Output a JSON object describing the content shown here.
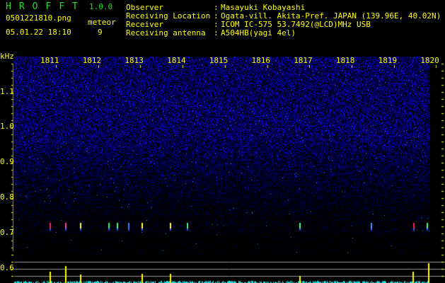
{
  "app": {
    "name_letters": [
      "H",
      "R",
      "O",
      "F",
      "F",
      "T"
    ],
    "version": "1.0.0"
  },
  "file": {
    "name": "0501221810.png",
    "datetime": "05.01.22 18:10"
  },
  "meteor": {
    "label": "meteor",
    "count": "9"
  },
  "info": [
    {
      "label": "Observer",
      "value": "Masayuki Kobayashi"
    },
    {
      "label": "Receiving Location",
      "value": "Ogata-vill. Akita-Pref. JAPAN (139.96E, 40.02N)"
    },
    {
      "label": "Receiver",
      "value": "ICOM IC-575 53.7492(@LCD)MHz USB"
    },
    {
      "label": "Receiving antenna",
      "value": "A504HB(yagi 4el)"
    }
  ],
  "spectrogram": {
    "y_unit": "kHz",
    "y_ticks": [
      "1.1",
      "1.0",
      "0.9",
      "0.8",
      "0.7",
      "0.6"
    ],
    "x_ticks": [
      "1811",
      "1812",
      "1813",
      "1814",
      "1815",
      "1816",
      "1817",
      "1818",
      "1819",
      "1820"
    ],
    "colors": {
      "background": "#000000",
      "noise": "#1a1aff",
      "text": "#ffff00",
      "signal_bar": "#ffff00",
      "noise_bar": "#22dddd",
      "grid": "#999999"
    }
  }
}
